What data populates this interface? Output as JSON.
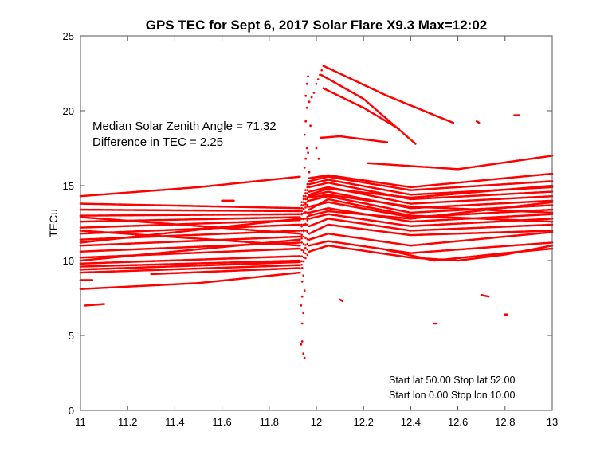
{
  "chart_data": {
    "type": "scatter",
    "title": "GPS TEC for Sept 6, 2017 Solar Flare X9.3 Max=12:02",
    "xlabel": "",
    "ylabel": "TECu",
    "xlim": [
      11,
      13
    ],
    "ylim": [
      0,
      25
    ],
    "xticks": [
      "11",
      "11.2",
      "11.4",
      "11.6",
      "11.8",
      "12",
      "12.2",
      "12.4",
      "12.6",
      "12.8",
      "13"
    ],
    "xtick_values": [
      11,
      11.2,
      11.4,
      11.6,
      11.8,
      12,
      12.2,
      12.4,
      12.6,
      12.8,
      13
    ],
    "yticks": [
      "0",
      "5",
      "10",
      "15",
      "20",
      "25"
    ],
    "ytick_values": [
      0,
      5,
      10,
      15,
      20,
      25
    ],
    "grid": false,
    "marker_color": "#ff0000",
    "annotations": {
      "median_sza": "Median Solar Zenith Angle = 71.32",
      "tec_diff": "Difference in TEC =  2.25",
      "lat_range": "Start lat 50.00 Stop lat 52.00",
      "lon_range": "Start lon  0.00 Stop lon 10.00"
    },
    "tracks": [
      [
        [
          11,
          14.3
        ],
        [
          11.5,
          14.9
        ],
        [
          11.93,
          15.6
        ]
      ],
      [
        [
          11,
          8.1
        ],
        [
          11.5,
          8.5
        ],
        [
          11.93,
          9.2
        ]
      ],
      [
        [
          11,
          8.7
        ],
        [
          11.05,
          8.7
        ]
      ],
      [
        [
          11.02,
          7.0
        ],
        [
          11.1,
          7.1
        ]
      ],
      [
        [
          11,
          9.4
        ],
        [
          11.93,
          9.9
        ],
        [
          11.97,
          11.8
        ],
        [
          12.05,
          12.4
        ],
        [
          12.4,
          11.7
        ],
        [
          13,
          12.0
        ]
      ],
      [
        [
          11,
          9.8
        ],
        [
          11.93,
          10.3
        ],
        [
          11.97,
          12.3
        ],
        [
          12.05,
          12.8
        ],
        [
          12.4,
          12.0
        ],
        [
          13,
          12.4
        ]
      ],
      [
        [
          11,
          10.2
        ],
        [
          11.93,
          10.8
        ],
        [
          11.97,
          12.8
        ],
        [
          12.05,
          13.1
        ],
        [
          12.4,
          12.3
        ],
        [
          13,
          12.8
        ]
      ],
      [
        [
          11,
          10.6
        ],
        [
          11.93,
          11.2
        ],
        [
          11.97,
          13.2
        ],
        [
          12.05,
          13.5
        ],
        [
          12.4,
          12.6
        ],
        [
          13,
          13.1
        ]
      ],
      [
        [
          11,
          11.0
        ],
        [
          11.93,
          11.6
        ],
        [
          11.97,
          13.6
        ],
        [
          12.05,
          13.9
        ],
        [
          12.4,
          12.9
        ],
        [
          13,
          13.4
        ]
      ],
      [
        [
          11,
          11.4
        ],
        [
          11.93,
          12.0
        ],
        [
          11.97,
          14.0
        ],
        [
          12.05,
          14.3
        ],
        [
          12.4,
          13.2
        ],
        [
          13,
          13.7
        ]
      ],
      [
        [
          11,
          11.8
        ],
        [
          11.93,
          12.4
        ],
        [
          11.97,
          14.3
        ],
        [
          12.05,
          14.6
        ],
        [
          12.4,
          13.5
        ],
        [
          13,
          14.0
        ]
      ],
      [
        [
          11,
          12.2
        ],
        [
          11.93,
          12.7
        ],
        [
          11.97,
          14.6
        ],
        [
          12.05,
          14.9
        ],
        [
          12.4,
          13.8
        ],
        [
          13,
          14.3
        ]
      ],
      [
        [
          11,
          12.6
        ],
        [
          11.93,
          12.9
        ],
        [
          11.97,
          14.9
        ],
        [
          12.05,
          15.2
        ],
        [
          12.4,
          14.1
        ],
        [
          13,
          14.6
        ]
      ],
      [
        [
          11,
          13.0
        ],
        [
          11.93,
          13.1
        ],
        [
          11.97,
          15.1
        ],
        [
          12.05,
          15.4
        ],
        [
          12.4,
          14.4
        ],
        [
          13,
          14.9
        ]
      ],
      [
        [
          11,
          13.4
        ],
        [
          11.93,
          13.3
        ],
        [
          11.97,
          15.3
        ],
        [
          12.05,
          15.6
        ],
        [
          12.4,
          14.7
        ],
        [
          13,
          15.3
        ]
      ],
      [
        [
          11,
          13.8
        ],
        [
          11.93,
          13.5
        ],
        [
          11.97,
          15.5
        ],
        [
          12.05,
          15.7
        ],
        [
          12.4,
          14.9
        ],
        [
          13,
          15.8
        ]
      ],
      [
        [
          11,
          10.0
        ],
        [
          11.93,
          11.4
        ],
        [
          11.97,
          13.0
        ],
        [
          12.05,
          13.3
        ],
        [
          12.4,
          12.8
        ],
        [
          13,
          13.9
        ]
      ],
      [
        [
          11,
          12.0
        ],
        [
          11.93,
          11.0
        ],
        [
          11.97,
          13.4
        ],
        [
          12.05,
          14.1
        ],
        [
          12.4,
          13.0
        ],
        [
          13,
          12.6
        ]
      ],
      [
        [
          11,
          11.2
        ],
        [
          11.93,
          12.8
        ],
        [
          11.97,
          14.4
        ],
        [
          12.05,
          14.8
        ],
        [
          12.4,
          14.2
        ],
        [
          13,
          15.0
        ]
      ],
      [
        [
          11,
          12.9
        ],
        [
          11.93,
          11.8
        ],
        [
          11.97,
          14.2
        ],
        [
          12.05,
          14.4
        ],
        [
          12.4,
          13.6
        ],
        [
          13,
          13.2
        ]
      ],
      [
        [
          11,
          9.6
        ],
        [
          11.93,
          10.0
        ],
        [
          11.97,
          11.4
        ],
        [
          12.05,
          11.8
        ],
        [
          12.4,
          11.0
        ],
        [
          13,
          11.9
        ]
      ],
      [
        [
          11,
          9.2
        ],
        [
          11.93,
          9.7
        ],
        [
          11.97,
          11.0
        ],
        [
          12.05,
          11.3
        ],
        [
          12.4,
          10.5
        ],
        [
          13,
          11.2
        ]
      ],
      [
        [
          11.3,
          9.1
        ],
        [
          11.93,
          9.5
        ],
        [
          11.97,
          10.6
        ],
        [
          12.05,
          11.0
        ],
        [
          12.4,
          10.2
        ],
        [
          12.6,
          10.0
        ],
        [
          12.8,
          10.4
        ],
        [
          13,
          11.0
        ]
      ],
      [
        [
          12.3,
          10.7
        ],
        [
          12.5,
          10.0
        ],
        [
          12.8,
          10.5
        ],
        [
          13,
          10.8
        ]
      ],
      [
        [
          12.0,
          21.8
        ],
        [
          12.03,
          23.0
        ],
        [
          12.3,
          21.0
        ],
        [
          12.58,
          19.2
        ]
      ],
      [
        [
          12.02,
          22.4
        ],
        [
          12.2,
          20.8
        ],
        [
          12.42,
          17.8
        ]
      ],
      [
        [
          12.03,
          21.5
        ],
        [
          12.2,
          20.2
        ],
        [
          12.35,
          18.8
        ]
      ],
      [
        [
          12.02,
          18.2
        ],
        [
          12.1,
          18.3
        ],
        [
          12.3,
          17.9
        ]
      ],
      [
        [
          12.22,
          16.5
        ],
        [
          12.6,
          16.1
        ],
        [
          13,
          17.0
        ]
      ],
      [
        [
          11.6,
          14.0
        ],
        [
          11.65,
          14.0
        ]
      ],
      [
        [
          12.68,
          19.3
        ],
        [
          12.69,
          19.2
        ]
      ],
      [
        [
          12.84,
          19.7
        ],
        [
          12.86,
          19.7
        ]
      ],
      [
        [
          12.1,
          7.4
        ],
        [
          12.11,
          7.3
        ]
      ],
      [
        [
          12.5,
          5.8
        ],
        [
          12.51,
          5.8
        ]
      ],
      [
        [
          12.7,
          7.7
        ],
        [
          12.73,
          7.6
        ]
      ],
      [
        [
          12.8,
          6.4
        ],
        [
          12.81,
          6.4
        ]
      ]
    ],
    "scatter_points": [
      [
        11.935,
        4.4
      ],
      [
        11.94,
        4.6
      ],
      [
        11.945,
        3.8
      ],
      [
        11.95,
        3.5
      ],
      [
        11.94,
        5.8
      ],
      [
        11.945,
        6.5
      ],
      [
        11.935,
        7.0
      ],
      [
        11.94,
        7.6
      ],
      [
        11.95,
        8.0
      ],
      [
        11.94,
        8.6
      ],
      [
        11.945,
        9.0
      ],
      [
        11.95,
        16.2
      ],
      [
        11.955,
        16.8
      ],
      [
        11.96,
        17.5
      ],
      [
        11.95,
        18.4
      ],
      [
        11.955,
        19.3
      ],
      [
        11.96,
        20.2
      ],
      [
        11.955,
        21.0
      ],
      [
        11.96,
        21.8
      ],
      [
        11.965,
        22.3
      ],
      [
        11.97,
        20.6
      ],
      [
        11.975,
        19.0
      ],
      [
        11.965,
        17.2
      ],
      [
        11.97,
        15.9
      ],
      [
        12.0,
        17.5
      ],
      [
        12.01,
        16.8
      ],
      [
        11.98,
        20.9
      ],
      [
        11.99,
        21.2
      ],
      [
        11.94,
        9.5
      ],
      [
        11.95,
        10.8
      ],
      [
        11.96,
        12.0
      ],
      [
        11.97,
        13.0
      ]
    ]
  }
}
